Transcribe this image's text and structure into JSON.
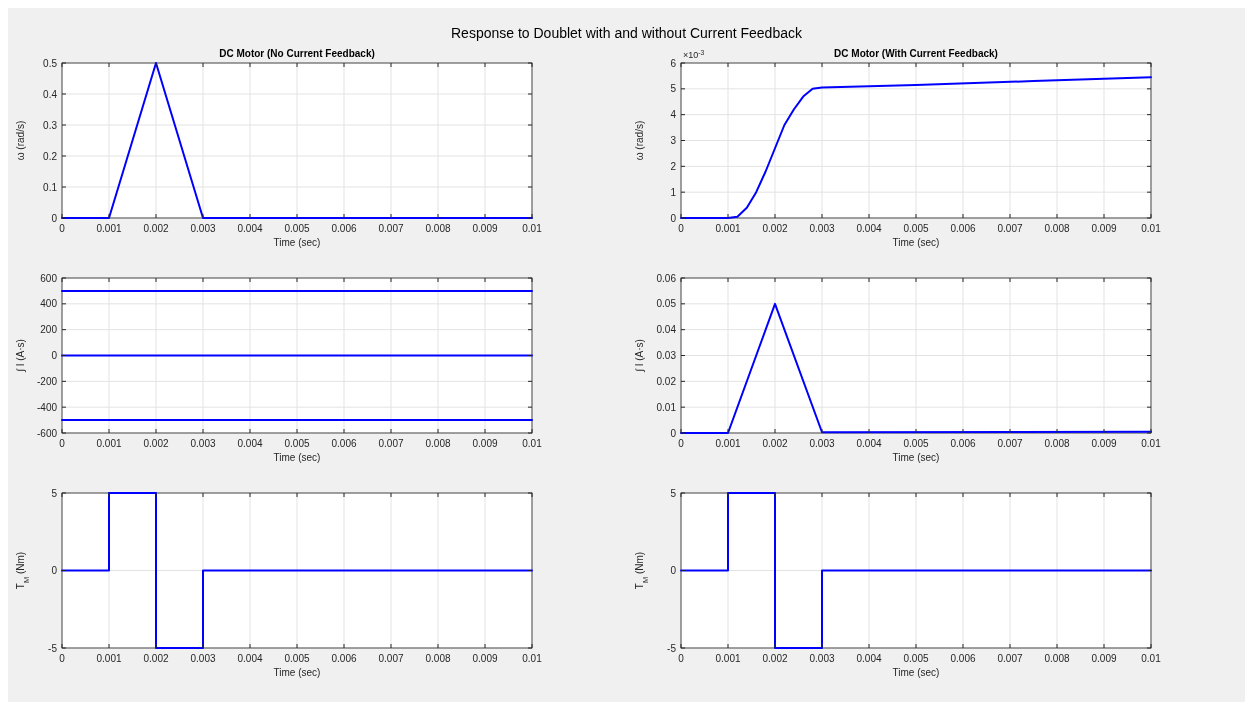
{
  "chart_data": [
    {
      "type": "line",
      "title": "Response to Doublet with and without Current Feedback",
      "subtitle": "DC Motor (No Current Feedback)",
      "xlabel": "Time (sec)",
      "ylabel": "ω (rad/s)",
      "xlim": [
        0,
        0.01
      ],
      "xticks": [
        0,
        0.001,
        0.002,
        0.003,
        0.004,
        0.005,
        0.006,
        0.007,
        0.008,
        0.009,
        0.01
      ],
      "ylim": [
        0,
        0.5
      ],
      "yticks": [
        0,
        0.1,
        0.2,
        0.3,
        0.4,
        0.5
      ],
      "grid": true,
      "series": [
        {
          "color": "#0000ff",
          "x": [
            0,
            0.001,
            0.002,
            0.003,
            0.01
          ],
          "values": [
            0,
            0,
            0.5,
            0,
            0
          ]
        }
      ]
    },
    {
      "type": "line",
      "subtitle": "DC Motor (With Current Feedback)",
      "xlabel": "Time (sec)",
      "ylabel": "ω (rad/s)",
      "annotations": [
        "×10$^{-3}$"
      ],
      "xlim": [
        0,
        0.01
      ],
      "xticks": [
        0,
        0.001,
        0.002,
        0.003,
        0.004,
        0.005,
        0.006,
        0.007,
        0.008,
        0.009,
        0.01
      ],
      "ylim": [
        0,
        6
      ],
      "yticks": [
        0,
        1,
        2,
        3,
        4,
        5,
        6
      ],
      "grid": true,
      "series": [
        {
          "color": "#0000ff",
          "x": [
            0,
            0.001,
            0.0012,
            0.0014,
            0.0016,
            0.0018,
            0.002,
            0.0022,
            0.0024,
            0.0026,
            0.0028,
            0.003,
            0.005,
            0.0075,
            0.01
          ],
          "values": [
            0,
            0,
            0.05,
            0.4,
            1,
            1.8,
            2.7,
            3.6,
            4.2,
            4.7,
            5,
            5.05,
            5.15,
            5.3,
            5.45
          ]
        }
      ]
    },
    {
      "type": "line",
      "xlabel": "Time (sec)",
      "ylabel": "∫ I (A·s)",
      "xlim": [
        0,
        0.01
      ],
      "xticks": [
        0,
        0.001,
        0.002,
        0.003,
        0.004,
        0.005,
        0.006,
        0.007,
        0.008,
        0.009,
        0.01
      ],
      "ylim": [
        -600,
        600
      ],
      "yticks": [
        -600,
        -400,
        -200,
        0,
        200,
        400,
        600
      ],
      "grid": true,
      "series": [
        {
          "color": "#0000ff",
          "x": [
            0,
            0.01
          ],
          "values": [
            500,
            500
          ]
        },
        {
          "color": "#0000ff",
          "x": [
            0,
            0.01
          ],
          "values": [
            0,
            0
          ]
        },
        {
          "color": "#0000ff",
          "x": [
            0,
            0.01
          ],
          "values": [
            -500,
            -500
          ]
        }
      ]
    },
    {
      "type": "line",
      "xlabel": "Time (sec)",
      "ylabel": "∫ I (A·s)",
      "xlim": [
        0,
        0.01
      ],
      "xticks": [
        0,
        0.001,
        0.002,
        0.003,
        0.004,
        0.005,
        0.006,
        0.007,
        0.008,
        0.009,
        0.01
      ],
      "ylim": [
        0,
        0.06
      ],
      "yticks": [
        0,
        0.01,
        0.02,
        0.03,
        0.04,
        0.05,
        0.06
      ],
      "grid": true,
      "series": [
        {
          "color": "#0000ff",
          "x": [
            0,
            0.001,
            0.002,
            0.003,
            0.01
          ],
          "values": [
            0,
            0,
            0.05,
            0.0003,
            0.0005
          ]
        }
      ]
    },
    {
      "type": "step",
      "xlabel": "Time (sec)",
      "ylabel": "T$_{M}$ (Nm)",
      "xlim": [
        0,
        0.01
      ],
      "xticks": [
        0,
        0.001,
        0.002,
        0.003,
        0.004,
        0.005,
        0.006,
        0.007,
        0.008,
        0.009,
        0.01
      ],
      "ylim": [
        -5,
        5
      ],
      "yticks": [
        -5,
        0,
        5
      ],
      "grid": true,
      "series": [
        {
          "color": "#0000ff",
          "x": [
            0,
            0.001,
            0.002,
            0.003,
            0.01
          ],
          "values": [
            0,
            5,
            -5,
            0,
            0
          ]
        }
      ]
    },
    {
      "type": "step",
      "xlabel": "Time (sec)",
      "ylabel": "T$_{M}$ (Nm)",
      "xlim": [
        0,
        0.01
      ],
      "xticks": [
        0,
        0.001,
        0.002,
        0.003,
        0.004,
        0.005,
        0.006,
        0.007,
        0.008,
        0.009,
        0.01
      ],
      "ylim": [
        -5,
        5
      ],
      "yticks": [
        -5,
        0,
        5
      ],
      "grid": true,
      "series": [
        {
          "color": "#0000ff",
          "x": [
            0,
            0.001,
            0.002,
            0.003,
            0.01
          ],
          "values": [
            0,
            5,
            -5,
            0,
            0
          ]
        }
      ]
    }
  ]
}
